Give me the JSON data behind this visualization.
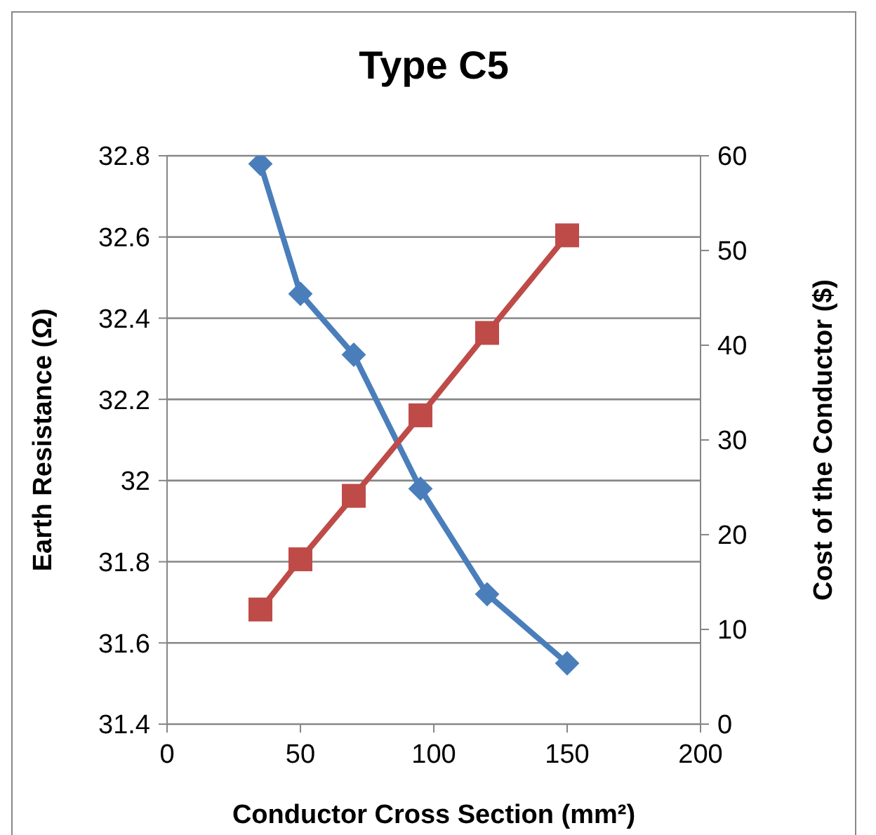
{
  "chart_data": {
    "type": "line",
    "title": "Type C5",
    "xlabel": "Conductor Cross Section (mm²)",
    "ylabel": "Earth Resistance (Ω)",
    "y2label": "Cost of the Conductor ($)",
    "x": [
      35,
      50,
      70,
      95,
      120,
      150
    ],
    "series": [
      {
        "color": "#4a7ebb",
        "values": [
          32.78,
          32.46,
          32.31,
          31.98,
          31.72,
          31.55
        ],
        "marker": "diamond"
      },
      {
        "color": "#be4b48",
        "values": [
          12.1,
          17.4,
          24.1,
          32.6,
          41.3,
          51.6
        ],
        "marker": "square",
        "axis": "y2"
      }
    ],
    "xlim": [
      0,
      200
    ],
    "xticks": [
      0,
      50,
      100,
      150,
      200
    ],
    "ylim": [
      31.4,
      32.8
    ],
    "yticks": [
      31.4,
      31.6,
      31.8,
      32,
      32.2,
      32.4,
      32.6,
      32.8
    ],
    "y2lim": [
      0,
      60
    ],
    "y2ticks": [
      0,
      10,
      20,
      30,
      40,
      50,
      60
    ],
    "grid": "y",
    "legend": false,
    "line_style": "solid"
  }
}
